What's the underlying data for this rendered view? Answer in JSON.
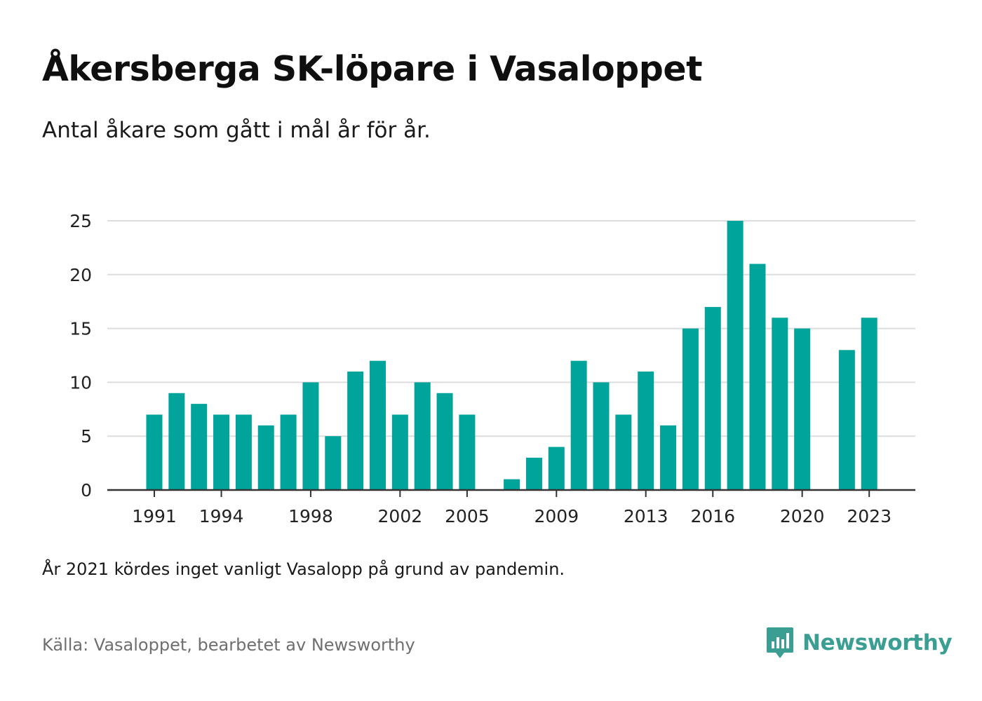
{
  "header": {
    "title": "Åkersberga SK-löpare i Vasaloppet",
    "subtitle": "Antal åkare som gått i mål år för år."
  },
  "footer": {
    "note": "År 2021 kördes inget vanligt Vasalopp på grund av pandemin.",
    "source": "Källa: Vasaloppet, bearbetet av Newsworthy",
    "brand": "Newsworthy",
    "brand_icon": "newsworthy-logo-icon"
  },
  "colors": {
    "bar": "#00a49a",
    "grid": "#dddddd",
    "axis": "#333333",
    "brand": "#3a9e93"
  },
  "chart_data": {
    "type": "bar",
    "x": [
      1991,
      1992,
      1993,
      1994,
      1995,
      1996,
      1997,
      1998,
      1999,
      2000,
      2001,
      2002,
      2003,
      2004,
      2005,
      2006,
      2007,
      2008,
      2009,
      2010,
      2011,
      2012,
      2013,
      2014,
      2015,
      2016,
      2017,
      2018,
      2019,
      2020,
      2021,
      2022,
      2023
    ],
    "values": [
      7,
      9,
      8,
      7,
      7,
      6,
      7,
      10,
      5,
      11,
      12,
      7,
      10,
      9,
      7,
      null,
      1,
      3,
      4,
      12,
      10,
      7,
      11,
      6,
      15,
      17,
      25,
      21,
      16,
      15,
      null,
      13,
      16
    ],
    "x_tick_labels": [
      "1991",
      "1994",
      "1998",
      "2002",
      "2005",
      "2009",
      "2013",
      "2016",
      "2020",
      "2023"
    ],
    "y_ticks": [
      0,
      5,
      10,
      15,
      20,
      25
    ],
    "ylim": [
      0,
      25
    ],
    "xlabel": "",
    "ylabel": "",
    "grid": "horizontal",
    "legend": "none"
  }
}
